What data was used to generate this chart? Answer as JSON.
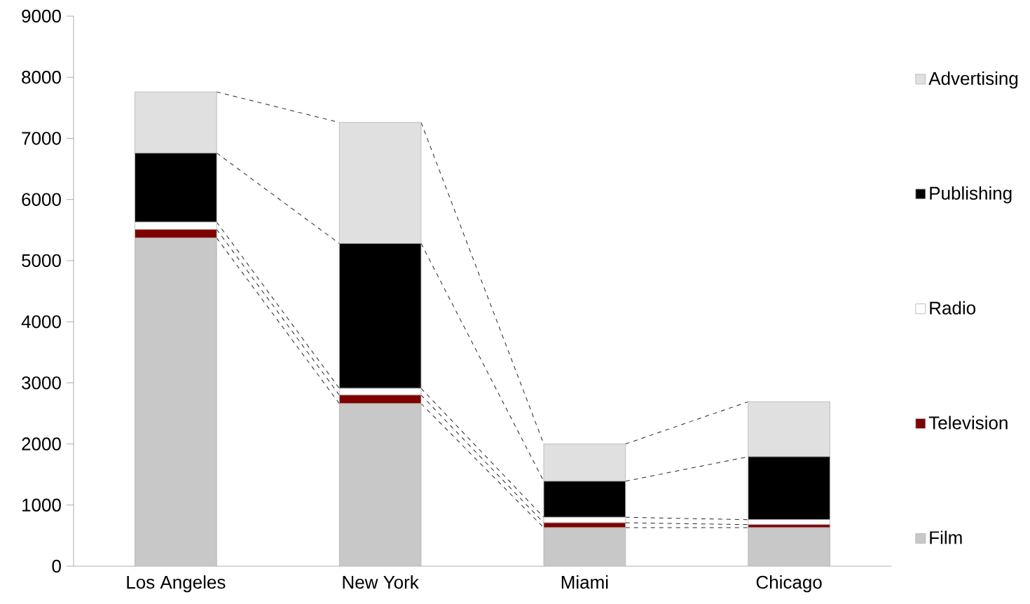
{
  "chart_data": {
    "type": "bar",
    "stacked": true,
    "categories": [
      "Los Angeles",
      "New York",
      "Miami",
      "Chicago"
    ],
    "series": [
      {
        "name": "Film",
        "color": "#c8c8c8",
        "values": [
          5370,
          2660,
          630,
          630
        ]
      },
      {
        "name": "Television",
        "color": "#800000",
        "values": [
          140,
          140,
          80,
          50
        ]
      },
      {
        "name": "Radio",
        "color": "#ffffff",
        "values": [
          120,
          110,
          90,
          80
        ]
      },
      {
        "name": "Publishing",
        "color": "#000000",
        "values": [
          1130,
          2370,
          590,
          1030
        ]
      },
      {
        "name": "Advertising",
        "color": "#e0e0e0",
        "values": [
          1000,
          1980,
          610,
          900
        ]
      }
    ],
    "ylim": [
      0,
      9000
    ],
    "yticks": [
      0,
      1000,
      2000,
      3000,
      4000,
      5000,
      6000,
      7000,
      8000,
      9000
    ],
    "grid": false,
    "legend": "right"
  }
}
